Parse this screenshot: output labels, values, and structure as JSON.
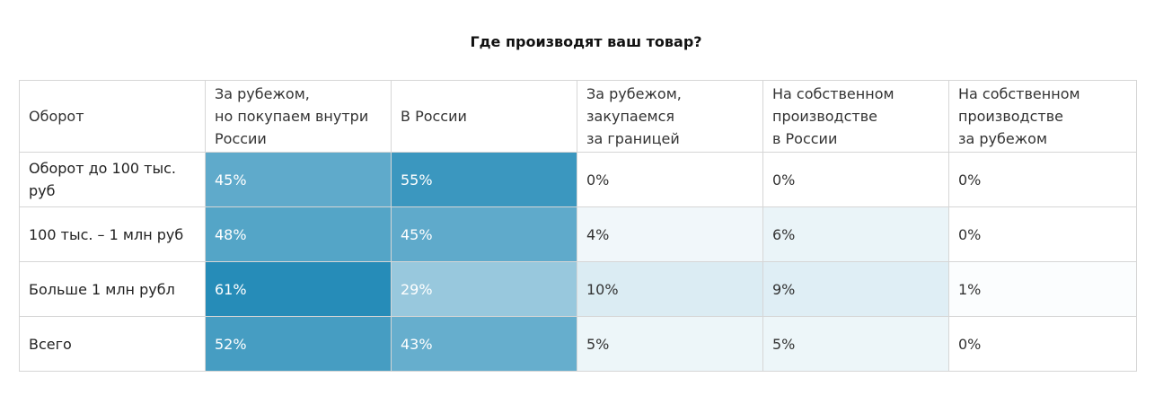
{
  "chart_data": {
    "type": "heatmap",
    "title": "Где производят ваш товар?",
    "corner_label": "Оборот",
    "columns": [
      "За рубежом,\nно покупаем внутри\nРоссии",
      "В России",
      "За рубежом,\nзакупаемся\nза границей",
      "На собственном\nпроизводстве\nв России",
      "На собственном\nпроизводстве\nза рубежом"
    ],
    "rows": [
      "Оборот до 100 тыс.\nруб",
      "100 тыс. – 1 млн руб",
      "Больше 1 млн рубл",
      "Всего"
    ],
    "values": [
      [
        45,
        55,
        0,
        0,
        0
      ],
      [
        48,
        45,
        4,
        6,
        0
      ],
      [
        61,
        29,
        10,
        9,
        1
      ],
      [
        52,
        43,
        5,
        5,
        0
      ]
    ],
    "value_labels": [
      [
        "45%",
        "55%",
        "0%",
        "0%",
        "0%"
      ],
      [
        "48%",
        "45%",
        "4%",
        "6%",
        "0%"
      ],
      [
        "61%",
        "29%",
        "10%",
        "9%",
        "1%"
      ],
      [
        "52%",
        "43%",
        "5%",
        "5%",
        "0%"
      ]
    ],
    "value_unit": "%",
    "color_scale": {
      "low": "#ffffff",
      "high": "#268cb8"
    }
  }
}
